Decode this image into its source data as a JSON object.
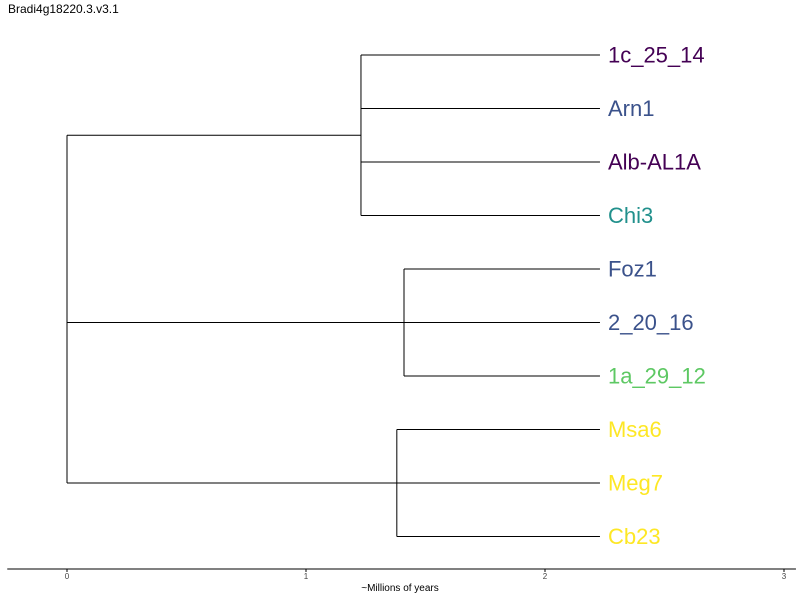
{
  "chart_data": {
    "type": "dendrogram",
    "title": "Bradi4g18220.3.v3.1",
    "xlabel": "~Millions of years",
    "xlim": [
      -0.25,
      3.05
    ],
    "xticks": [
      0,
      1,
      2,
      3
    ],
    "grid": false,
    "leaves": [
      {
        "label": "1c_25_14",
        "depth": 2.23,
        "color": "#440154"
      },
      {
        "label": "Arn1",
        "depth": 2.23,
        "color": "#3b528b"
      },
      {
        "label": "Alb-AL1A",
        "depth": 2.23,
        "color": "#440154"
      },
      {
        "label": "Chi3",
        "depth": 2.23,
        "color": "#21908c"
      },
      {
        "label": "Foz1",
        "depth": 2.23,
        "color": "#3b528b"
      },
      {
        "label": "2_20_16",
        "depth": 2.23,
        "color": "#3b528b"
      },
      {
        "label": "1a_29_12",
        "depth": 2.23,
        "color": "#5dc863"
      },
      {
        "label": "Msa6",
        "depth": 2.23,
        "color": "#fde725"
      },
      {
        "label": "Meg7",
        "depth": 2.23,
        "color": "#fde725"
      },
      {
        "label": "Cb23",
        "depth": 2.23,
        "color": "#fde725"
      }
    ],
    "clades": [
      {
        "depth": 1.23,
        "children": [
          0,
          1,
          2,
          3
        ]
      },
      {
        "depth": 1.41,
        "children": [
          4,
          5,
          6
        ]
      },
      {
        "depth": 1.38,
        "children": [
          7,
          8,
          9
        ]
      },
      {
        "depth": 0.0,
        "children": [
          "clade0",
          "clade1",
          "clade2"
        ]
      }
    ]
  }
}
